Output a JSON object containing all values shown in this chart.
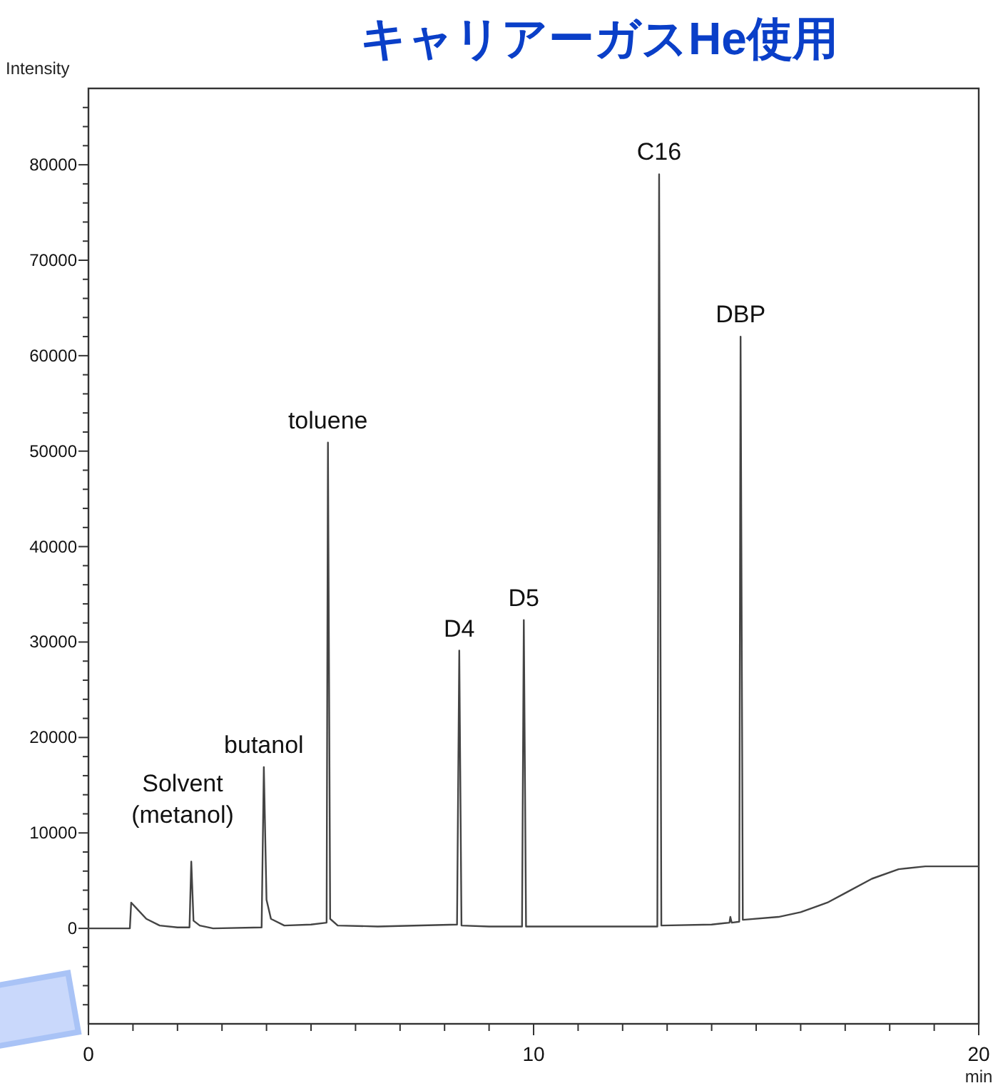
{
  "chart_data": {
    "type": "line",
    "title": "キャリアーガスHe使用",
    "xlabel": "min",
    "ylabel": "Intensity",
    "xlim": [
      0,
      20
    ],
    "ylim": [
      -10000,
      88000
    ],
    "xticks": [
      0,
      {
        "value": 1,
        "label": null
      },
      {
        "value": 2,
        "label": null
      },
      {
        "value": 3,
        "label": null
      },
      {
        "value": 4,
        "label": null
      },
      {
        "value": 5,
        "label": null
      },
      {
        "value": 6,
        "label": null
      },
      {
        "value": 7,
        "label": null
      },
      {
        "value": 8,
        "label": null
      },
      {
        "value": 9,
        "label": null
      },
      10,
      {
        "value": 11,
        "label": null
      },
      {
        "value": 12,
        "label": null
      },
      {
        "value": 13,
        "label": null
      },
      {
        "value": 14,
        "label": null
      },
      {
        "value": 15,
        "label": null
      },
      {
        "value": 16,
        "label": null
      },
      {
        "value": 17,
        "label": null
      },
      {
        "value": 18,
        "label": null
      },
      {
        "value": 19,
        "label": null
      },
      20
    ],
    "yticks": [
      {
        "value": -8000,
        "label": null
      },
      {
        "value": -6000,
        "label": null
      },
      {
        "value": -4000,
        "label": null
      },
      {
        "value": -2000,
        "label": null
      },
      0,
      {
        "value": 2000,
        "label": null
      },
      {
        "value": 4000,
        "label": null
      },
      {
        "value": 6000,
        "label": null
      },
      {
        "value": 8000,
        "label": null
      },
      10000,
      {
        "value": 12000,
        "label": null
      },
      {
        "value": 14000,
        "label": null
      },
      {
        "value": 16000,
        "label": null
      },
      {
        "value": 18000,
        "label": null
      },
      20000,
      {
        "value": 22000,
        "label": null
      },
      {
        "value": 24000,
        "label": null
      },
      {
        "value": 26000,
        "label": null
      },
      {
        "value": 28000,
        "label": null
      },
      30000,
      {
        "value": 32000,
        "label": null
      },
      {
        "value": 34000,
        "label": null
      },
      {
        "value": 36000,
        "label": null
      },
      {
        "value": 38000,
        "label": null
      },
      40000,
      {
        "value": 42000,
        "label": null
      },
      {
        "value": 44000,
        "label": null
      },
      {
        "value": 46000,
        "label": null
      },
      {
        "value": 48000,
        "label": null
      },
      50000,
      {
        "value": 52000,
        "label": null
      },
      {
        "value": 54000,
        "label": null
      },
      {
        "value": 56000,
        "label": null
      },
      {
        "value": 58000,
        "label": null
      },
      60000,
      {
        "value": 62000,
        "label": null
      },
      {
        "value": 64000,
        "label": null
      },
      {
        "value": 66000,
        "label": null
      },
      {
        "value": 68000,
        "label": null
      },
      70000,
      {
        "value": 72000,
        "label": null
      },
      {
        "value": 74000,
        "label": null
      },
      {
        "value": 76000,
        "label": null
      },
      {
        "value": 78000,
        "label": null
      },
      80000,
      {
        "value": 82000,
        "label": null
      },
      {
        "value": 84000,
        "label": null
      },
      {
        "value": 86000,
        "label": null
      }
    ],
    "grid": false,
    "marker": "none",
    "line_style": "solid",
    "series": [
      {
        "color": "#444444",
        "x": [
          0,
          0.93,
          0.96,
          1.1,
          1.3,
          1.6,
          2.0,
          2.27,
          2.31,
          2.36,
          2.5,
          2.8,
          3.89,
          3.94,
          4.0,
          4.1,
          4.4,
          5.0,
          5.35,
          5.38,
          5.43,
          5.6,
          6.5,
          8.28,
          8.33,
          8.38,
          9.0,
          9.74,
          9.78,
          9.83,
          11.0,
          12.78,
          12.82,
          12.87,
          14.0,
          14.4,
          14.42,
          14.45,
          14.62,
          14.65,
          14.7,
          15.5,
          16.0,
          16.6,
          17.0,
          17.6,
          18.2,
          18.8,
          20
        ],
        "values": [
          0,
          0,
          2700,
          2000,
          1000,
          300,
          100,
          100,
          7000,
          800,
          300,
          0,
          100,
          16900,
          3000,
          1000,
          300,
          400,
          600,
          50900,
          1000,
          300,
          200,
          400,
          29100,
          300,
          200,
          200,
          32300,
          200,
          200,
          200,
          79000,
          300,
          400,
          600,
          1200,
          600,
          700,
          62000,
          900,
          1200,
          1700,
          2700,
          3700,
          5200,
          6200,
          6500,
          6500
        ]
      }
    ],
    "annotations": [
      "Solvent\n(metanol)",
      {
        "text": "butanol",
        "x": 3.94,
        "y": 16900
      },
      {
        "text": "toluene",
        "x": 5.38,
        "y": 50900
      },
      {
        "text": "D4",
        "x": 8.33,
        "y": 29100
      },
      {
        "text": "D5",
        "x": 9.78,
        "y": 32300
      },
      {
        "text": "C16",
        "x": 12.82,
        "y": 79000
      },
      {
        "text": "DBP",
        "x": 14.65,
        "y": 62000
      }
    ]
  }
}
